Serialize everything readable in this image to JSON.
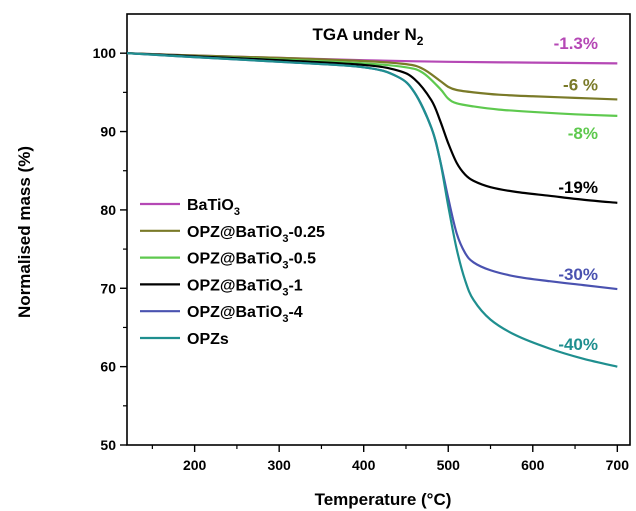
{
  "chart_data": {
    "type": "line",
    "title": "TGA under N",
    "title_subscript": "2",
    "xlabel": "Temperature (°C)",
    "ylabel": "Normalised mass  (%)",
    "xlim": [
      120,
      715
    ],
    "ylim": [
      50,
      105
    ],
    "xticks": [
      200,
      300,
      400,
      500,
      600,
      700
    ],
    "yticks": [
      50,
      60,
      70,
      80,
      90,
      100
    ],
    "legend_position": "center-left",
    "grid": false,
    "series": [
      {
        "name": "BaTiO",
        "name_sub": "3",
        "name_suffix": "",
        "color": "#b548b5",
        "end_label": "-1.3%",
        "label_y": 101.3,
        "x": [
          120,
          200,
          300,
          400,
          500,
          600,
          700
        ],
        "y": [
          100,
          99.7,
          99.4,
          99.1,
          98.9,
          98.8,
          98.7
        ]
      },
      {
        "name": "OPZ@BaTiO",
        "name_sub": "3",
        "name_suffix": "-0.25",
        "color": "#7a7a28",
        "end_label": "-6 %",
        "label_y": 96.0,
        "x": [
          120,
          200,
          300,
          400,
          450,
          470,
          490,
          500,
          510,
          530,
          560,
          600,
          650,
          700
        ],
        "y": [
          100,
          99.7,
          99.4,
          99.0,
          98.6,
          98.0,
          96.5,
          95.7,
          95.3,
          95.0,
          94.7,
          94.5,
          94.3,
          94.1
        ]
      },
      {
        "name": "OPZ@BaTiO",
        "name_sub": "3",
        "name_suffix": "-0.5",
        "color": "#5ec94e",
        "end_label": "-8%",
        "label_y": 89.8,
        "x": [
          120,
          200,
          300,
          400,
          450,
          470,
          490,
          500,
          510,
          530,
          560,
          600,
          650,
          700
        ],
        "y": [
          100,
          99.6,
          99.2,
          98.7,
          98.2,
          97.5,
          95.5,
          94.2,
          93.6,
          93.2,
          92.8,
          92.5,
          92.2,
          92.0
        ]
      },
      {
        "name": "OPZ@BaTiO",
        "name_sub": "3",
        "name_suffix": "-1",
        "color": "#000000",
        "end_label": "-19%",
        "label_y": 82.9,
        "x": [
          120,
          200,
          300,
          400,
          440,
          460,
          480,
          490,
          500,
          510,
          520,
          530,
          550,
          580,
          620,
          660,
          700
        ],
        "y": [
          100,
          99.6,
          99.1,
          98.5,
          97.8,
          96.7,
          94.0,
          91.5,
          88.5,
          86.0,
          84.5,
          83.7,
          82.9,
          82.3,
          81.8,
          81.3,
          80.9
        ]
      },
      {
        "name": "OPZ@BaTiO",
        "name_sub": "3",
        "name_suffix": "-4",
        "color": "#4a52b0",
        "end_label": "-30%",
        "label_y": 71.8,
        "x": [
          120,
          200,
          300,
          400,
          440,
          460,
          480,
          490,
          500,
          510,
          520,
          530,
          550,
          580,
          620,
          660,
          700
        ],
        "y": [
          100,
          99.5,
          98.9,
          98.2,
          97.0,
          95.0,
          90.5,
          86.5,
          81.5,
          77.0,
          74.5,
          73.3,
          72.3,
          71.5,
          70.9,
          70.4,
          69.9
        ]
      },
      {
        "name": "OPZs",
        "name_sub": "",
        "name_suffix": "",
        "color": "#1f8f8f",
        "end_label": "-40%",
        "label_y": 62.9,
        "x": [
          120,
          200,
          300,
          400,
          440,
          460,
          480,
          490,
          500,
          510,
          520,
          530,
          550,
          580,
          620,
          660,
          700
        ],
        "y": [
          100,
          99.5,
          98.9,
          98.2,
          97.0,
          95.0,
          90.5,
          86.5,
          80.5,
          75.0,
          71.0,
          68.5,
          66.0,
          64.0,
          62.3,
          61.0,
          60.0
        ]
      }
    ]
  }
}
